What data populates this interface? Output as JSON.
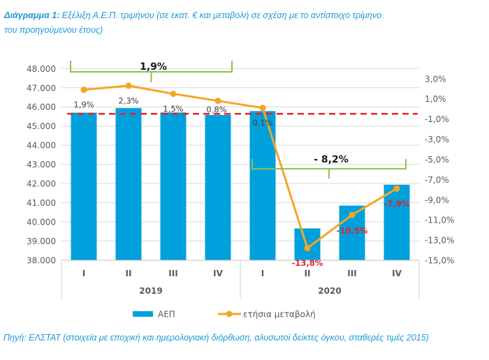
{
  "header": {
    "label": "Διάγραμμα 1:",
    "line1": "Εξέλιξη Α.Ε.Π. τριμήνου (σε εκατ. € και μεταβολή σε σχέση με το αντίστοιχο τρίμηνο",
    "line2": "του προηγούμενου έτους)"
  },
  "source": "Πηγή: ΕΛΣΤΑΤ (στοιχεία με εποχική και ημερολογιακή διόρθωση, αλυσωτοί δείκτες όγκου, σταθερές τιμές 2015)",
  "colors": {
    "title": "#1e9ad6",
    "bar": "#00a0dc",
    "line": "#f5a623",
    "reference_line": "#e8202a",
    "bracket": "#8cc152",
    "label_positive": "#404040",
    "label_negative": "#e8202a",
    "axis_text": "#595959",
    "grid": "#d9d9d9"
  },
  "chart_data": {
    "type": "bar",
    "title": "Διάγραμμα 1: Εξέλιξη Α.Ε.Π. τριμήνου (σε εκατ. € και μεταβολή σε σχέση με το αντίστοιχο τρίμηνο του προηγούμενου έτους)",
    "xlabel": "",
    "ylabel": "",
    "grid": true,
    "categories": [
      "I",
      "II",
      "III",
      "IV",
      "I",
      "II",
      "III",
      "IV"
    ],
    "category_groups": [
      {
        "label": "2019",
        "span": 4
      },
      {
        "label": "2020",
        "span": 4
      }
    ],
    "series": [
      {
        "name": "ΑΕΠ",
        "type": "bar",
        "axis": "left",
        "values": [
          45700,
          45940,
          45710,
          45580,
          45780,
          39660,
          40850,
          41940
        ]
      },
      {
        "name": "ετήσια μεταβολή",
        "type": "line",
        "axis": "right",
        "values": [
          1.9,
          2.3,
          1.5,
          0.8,
          0.1,
          -13.8,
          -10.5,
          -7.9
        ],
        "labels": [
          "1,9%",
          "2,3%",
          "1,5%",
          "0,8%",
          "0,1%",
          "-13,8%",
          "-10,5%",
          "-7,9%"
        ]
      }
    ],
    "left_axis": {
      "min": 38000,
      "max": 48000,
      "step": 1000,
      "tick_labels": [
        "38.000",
        "39.000",
        "40.000",
        "41.000",
        "42.000",
        "43.000",
        "44.000",
        "45.000",
        "46.000",
        "47.000",
        "48.000"
      ]
    },
    "right_axis": {
      "min": -15,
      "max": 4,
      "ticks": [
        -15,
        -13,
        -11,
        -9,
        -7,
        -5,
        -3,
        -1,
        1,
        3
      ],
      "tick_labels": [
        "-15,0%",
        "-13,0%",
        "-11,0%",
        "-9,0%",
        "-7,0%",
        "-5,0%",
        "-3,0%",
        "-1,0%",
        "1,0%",
        "3,0%"
      ]
    },
    "reference_line": {
      "axis": "left",
      "value": 45640,
      "style": "dashed"
    },
    "annotations": [
      {
        "label": "1,9%",
        "from": 0,
        "to": 3
      },
      {
        "label": "- 8,2%",
        "from": 4,
        "to": 7
      }
    ],
    "legend": {
      "position": "bottom",
      "entries": [
        {
          "label": "ΑΕΠ",
          "kind": "bar"
        },
        {
          "label": "ετήσια μεταβολή",
          "kind": "line-marker"
        }
      ]
    }
  }
}
